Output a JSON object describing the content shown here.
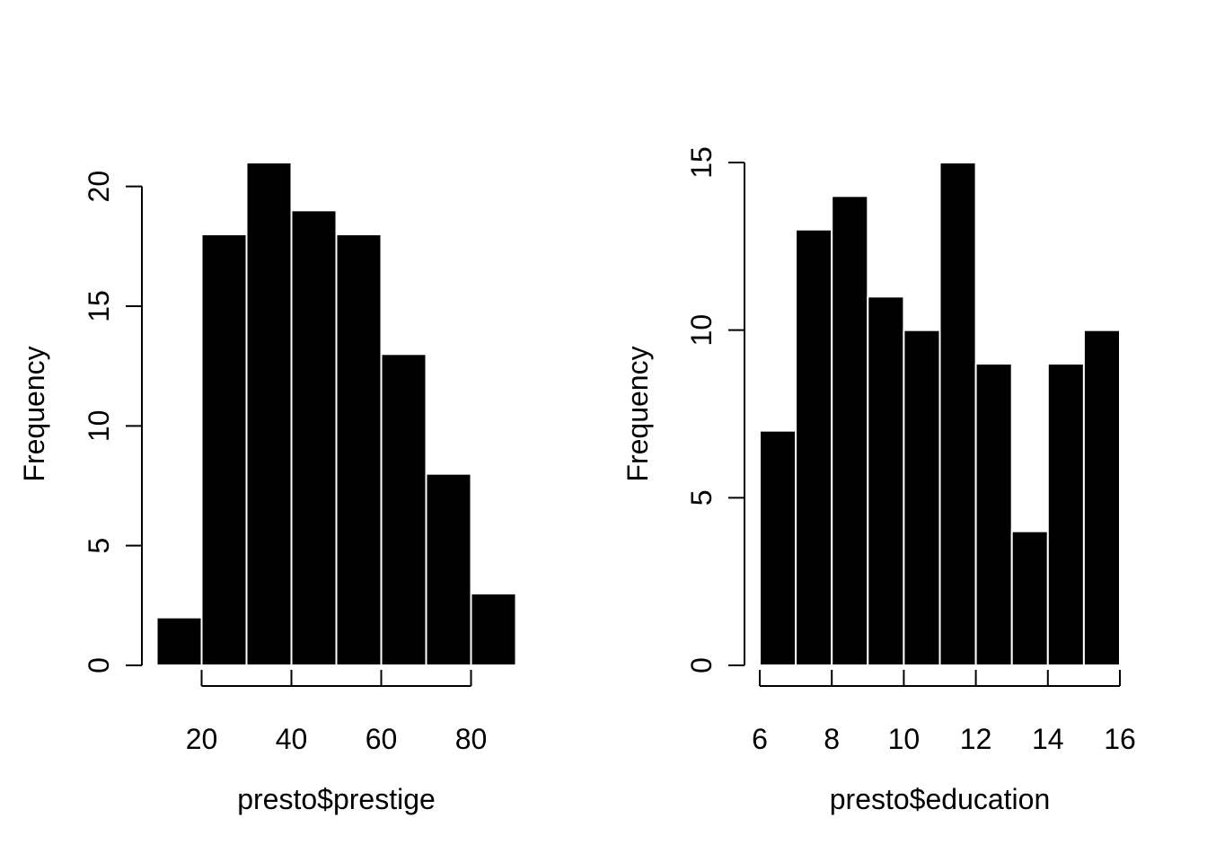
{
  "colors": {
    "background": "#ffffff",
    "bar_fill": "#000000",
    "bar_border": "#ffffff",
    "axis": "#000000"
  },
  "chart_data": [
    {
      "type": "bar",
      "subtype": "histogram",
      "title": "",
      "xlabel": "presto$prestige",
      "ylabel": "Frequency",
      "bins": [
        [
          10,
          20
        ],
        [
          20,
          30
        ],
        [
          30,
          40
        ],
        [
          40,
          50
        ],
        [
          50,
          60
        ],
        [
          60,
          70
        ],
        [
          70,
          80
        ],
        [
          80,
          90
        ]
      ],
      "values": [
        2,
        18,
        21,
        19,
        18,
        13,
        8,
        3
      ],
      "xlim": [
        10,
        90
      ],
      "ylim": [
        0,
        21
      ],
      "xticks": [
        20,
        40,
        60,
        80
      ],
      "xtick_labels": [
        "20",
        "40",
        "60",
        "80"
      ],
      "yticks": [
        0,
        5,
        10,
        15,
        20
      ],
      "ytick_labels": [
        "0",
        "5",
        "10",
        "15",
        "20"
      ],
      "grid": false
    },
    {
      "type": "bar",
      "subtype": "histogram",
      "title": "",
      "xlabel": "presto$education",
      "ylabel": "Frequency",
      "bins": [
        [
          6,
          7
        ],
        [
          7,
          8
        ],
        [
          8,
          9
        ],
        [
          9,
          10
        ],
        [
          10,
          11
        ],
        [
          11,
          12
        ],
        [
          12,
          13
        ],
        [
          13,
          14
        ],
        [
          14,
          15
        ],
        [
          15,
          16
        ]
      ],
      "values": [
        7,
        13,
        14,
        11,
        10,
        15,
        9,
        4,
        9,
        10
      ],
      "xlim": [
        6,
        16
      ],
      "ylim": [
        0,
        15
      ],
      "xticks": [
        6,
        8,
        10,
        12,
        14,
        16
      ],
      "xtick_labels": [
        "6",
        "8",
        "10",
        "12",
        "14",
        "16"
      ],
      "yticks": [
        0,
        5,
        10,
        15
      ],
      "ytick_labels": [
        "0",
        "5",
        "10",
        "15"
      ],
      "grid": false
    }
  ]
}
